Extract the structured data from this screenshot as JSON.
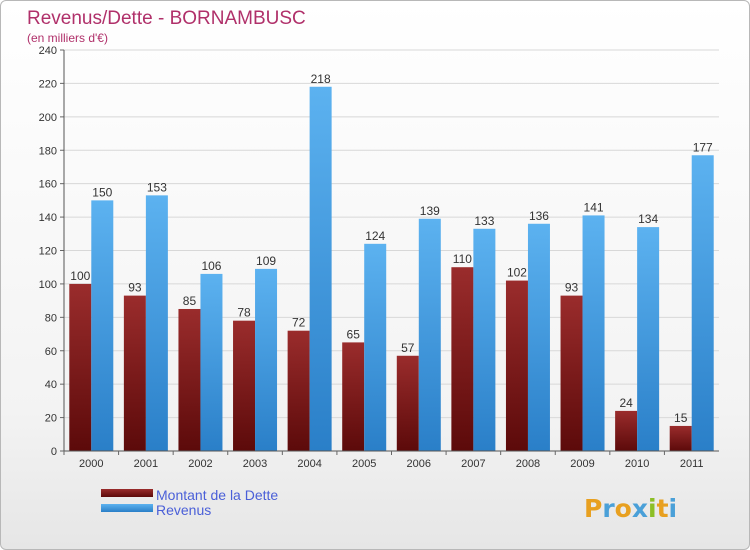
{
  "chart_data": {
    "type": "bar",
    "title": "Revenus/Dette - BORNAMBUSC",
    "subtitle": "(en milliers d'€)",
    "categories": [
      "2000",
      "2001",
      "2002",
      "2003",
      "2004",
      "2005",
      "2006",
      "2007",
      "2008",
      "2009",
      "2010",
      "2011"
    ],
    "series": [
      {
        "name": "Montant de la Dette",
        "color": "#7a1c1c",
        "values": [
          100,
          93,
          85,
          78,
          72,
          65,
          57,
          110,
          102,
          93,
          24,
          15
        ]
      },
      {
        "name": "Revenus",
        "color": "#4da3e6",
        "values": [
          150,
          153,
          106,
          109,
          218,
          124,
          139,
          133,
          136,
          141,
          134,
          177
        ]
      }
    ],
    "ylim": [
      0,
      240
    ],
    "yticks": [
      0,
      20,
      40,
      60,
      80,
      100,
      120,
      140,
      160,
      180,
      200,
      220,
      240
    ],
    "grid": true,
    "legend_position": "bottom-left",
    "title_color": "#b0306a",
    "legend_text_color": "#4a5fd8",
    "logo": {
      "letters": [
        "P",
        "r",
        "o",
        "x",
        "i",
        "t",
        "i"
      ],
      "colors": [
        "#e8a020",
        "#4aa0d8",
        "#e8a020",
        "#4aa0d8",
        "#8cbf26",
        "#e8a020",
        "#4aa0d8"
      ]
    }
  }
}
